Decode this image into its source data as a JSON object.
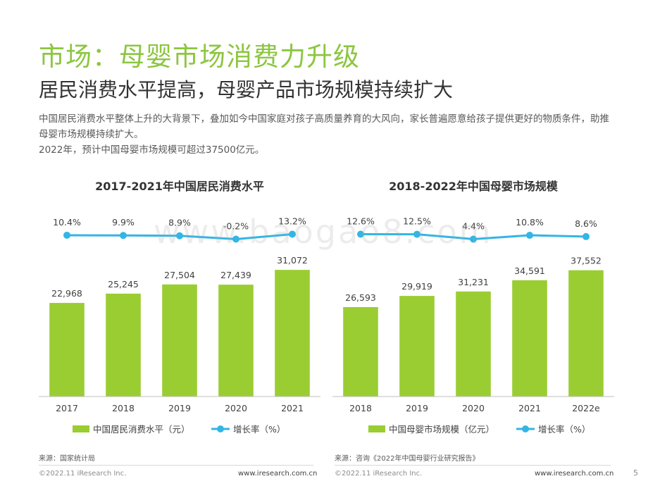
{
  "page": {
    "title": "市场：母婴市场消费力升级",
    "subtitle": "居民消费水平提高，母婴产品市场规模持续扩大",
    "intro": [
      "中国居民消费水平整体上升的大背景下，叠加如今中国家庭对孩子高质量养育的大风向，家长普遍愿意给孩子提供更好的物质条件，助推母婴市场规模持续扩大。",
      "2022年，预计中国母婴市场规模可超过37500亿元。"
    ],
    "watermark": "www.baogao8.com",
    "page_number": "5"
  },
  "colors": {
    "bar": "#9acd32",
    "line": "#33b5e5",
    "title_green": "#8cc63f"
  },
  "footer": {
    "left": {
      "source": "来源：国家统计局",
      "copyright": "©2022.11 iResearch Inc.",
      "url": "www.iresearch.com.cn"
    },
    "right": {
      "source": "来源：咨询《2022年中国母婴行业研究报告》",
      "copyright": "©2022.11 iResearch Inc.",
      "url": "www.iresearch.com.cn"
    }
  },
  "chart_data": [
    {
      "type": "bar",
      "title": "2017-2021年中国居民消费水平",
      "categories": [
        "2017",
        "2018",
        "2019",
        "2020",
        "2021"
      ],
      "series": [
        {
          "name": "中国居民消费水平（元）",
          "type": "bar",
          "values": [
            22968,
            25245,
            27504,
            27439,
            31072
          ],
          "labels": [
            "22,968",
            "25,245",
            "27,504",
            "27,439",
            "31,072"
          ]
        },
        {
          "name": "增长率（%）",
          "type": "line",
          "values": [
            10.4,
            9.9,
            8.9,
            -0.2,
            13.2
          ],
          "labels": [
            "10.4%",
            "9.9%",
            "8.9%",
            "-0.2%",
            "13.2%"
          ]
        }
      ],
      "legend": "bottom",
      "grid": false
    },
    {
      "type": "bar",
      "title": "2018-2022年中国母婴市场规模",
      "categories": [
        "2018",
        "2019",
        "2020",
        "2021",
        "2022e"
      ],
      "series": [
        {
          "name": "中国母婴市场规模（亿元）",
          "type": "bar",
          "values": [
            26593,
            29919,
            31231,
            34591,
            37552
          ],
          "labels": [
            "26,593",
            "29,919",
            "31,231",
            "34,591",
            "37,552"
          ]
        },
        {
          "name": "增长率（%）",
          "type": "line",
          "values": [
            12.6,
            12.5,
            4.4,
            10.8,
            8.6
          ],
          "labels": [
            "12.6%",
            "12.5%",
            "4.4%",
            "10.8%",
            "8.6%"
          ]
        }
      ],
      "legend": "bottom",
      "grid": false
    }
  ]
}
